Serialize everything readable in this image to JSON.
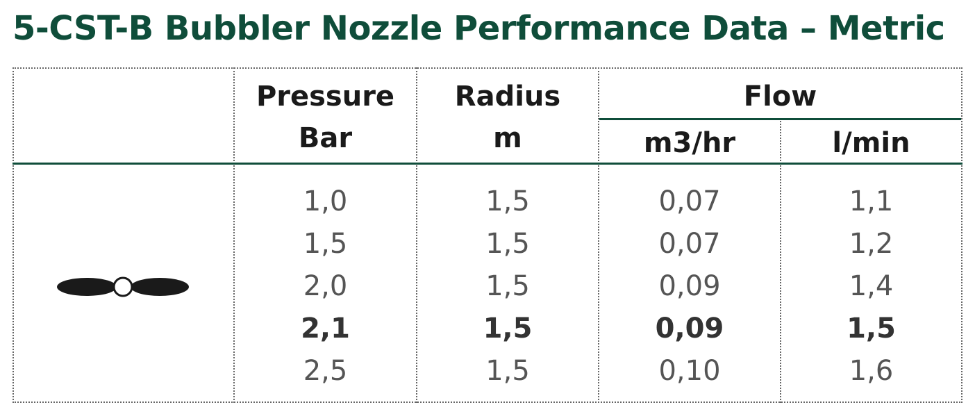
{
  "title": "5-CST-B Bubbler Nozzle Performance Data – Metric",
  "headers": {
    "pressure_line1": "Pressure",
    "pressure_line2": "Bar",
    "radius_line1": "Radius",
    "radius_line2": "m",
    "flow": "Flow",
    "flow_m3hr": "m3/hr",
    "flow_lmin": "l/min"
  },
  "icon": "bubbler-spray-pattern-icon",
  "rows": [
    {
      "pressure": "1,0",
      "radius": "1,5",
      "m3hr": "0,07",
      "lmin": "1,1",
      "bold": false
    },
    {
      "pressure": "1,5",
      "radius": "1,5",
      "m3hr": "0,07",
      "lmin": "1,2",
      "bold": false
    },
    {
      "pressure": "2,0",
      "radius": "1,5",
      "m3hr": "0,09",
      "lmin": "1,4",
      "bold": false
    },
    {
      "pressure": "2,1",
      "radius": "1,5",
      "m3hr": "0,09",
      "lmin": "1,5",
      "bold": true
    },
    {
      "pressure": "2,5",
      "radius": "1,5",
      "m3hr": "0,10",
      "lmin": "1,6",
      "bold": false
    }
  ],
  "colors": {
    "brand_green": "#0f4d3a",
    "text_dark": "#1a1a1a",
    "text_gray": "#555555"
  }
}
